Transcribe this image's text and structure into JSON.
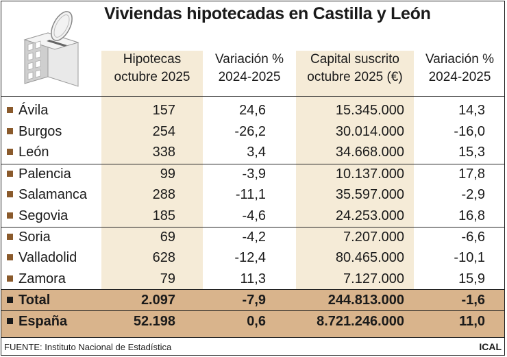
{
  "title": "Viviendas hipotecadas en Castilla y León",
  "chart_data": {
    "type": "table",
    "columns": [
      {
        "line1": "Hipotecas",
        "line2": "octubre 2025"
      },
      {
        "line1": "Variación %",
        "line2": "2024-2025"
      },
      {
        "line1": "Capital suscrito",
        "line2": "octubre 2025 (€)"
      },
      {
        "line1": "Variación %",
        "line2": "2024-2025"
      }
    ],
    "groups": [
      [
        {
          "name": "Ávila",
          "hip": "157",
          "var1": "24,6",
          "cap": "15.345.000",
          "var2": "14,3"
        },
        {
          "name": "Burgos",
          "hip": "254",
          "var1": "-26,2",
          "cap": "30.014.000",
          "var2": "-16,0"
        },
        {
          "name": "León",
          "hip": "338",
          "var1": "3,4",
          "cap": "34.668.000",
          "var2": "15,3"
        }
      ],
      [
        {
          "name": "Palencia",
          "hip": "99",
          "var1": "-3,9",
          "cap": "10.137.000",
          "var2": "17,8"
        },
        {
          "name": "Salamanca",
          "hip": "288",
          "var1": "-11,1",
          "cap": "35.597.000",
          "var2": "-2,9"
        },
        {
          "name": "Segovia",
          "hip": "185",
          "var1": "-4,6",
          "cap": "24.253.000",
          "var2": "16,8"
        }
      ],
      [
        {
          "name": "Soria",
          "hip": "69",
          "var1": "-4,2",
          "cap": "7.207.000",
          "var2": "-6,6"
        },
        {
          "name": "Valladolid",
          "hip": "628",
          "var1": "-12,4",
          "cap": "80.465.000",
          "var2": "-10,1"
        },
        {
          "name": "Zamora",
          "hip": "79",
          "var1": "11,3",
          "cap": "7.127.000",
          "var2": "15,9"
        }
      ]
    ],
    "totals": [
      {
        "name": "Total",
        "hip": "2.097",
        "var1": "-7,9",
        "cap": "244.813.000",
        "var2": "-1,6"
      },
      {
        "name": "España",
        "hip": "52.198",
        "var1": "0,6",
        "cap": "8.721.246.000",
        "var2": "11,0"
      }
    ]
  },
  "footer": {
    "source": "FUENTE: Instituto Nacional de Estadística",
    "brand": "ICAL"
  },
  "colors": {
    "column_bg": "#f5ebd7",
    "total_bg": "#d9b48c",
    "bullet": "#8a5a2c"
  }
}
